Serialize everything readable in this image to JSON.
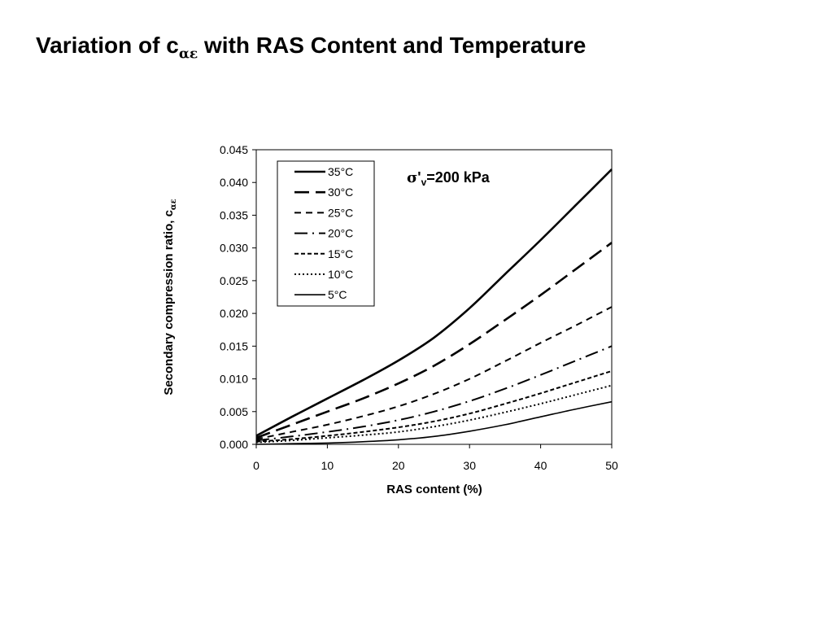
{
  "slide": {
    "title_main": "Variation of c",
    "title_sub": "αε",
    "title_rest": " with RAS Content and Temperature"
  },
  "chart_data": {
    "type": "line",
    "title": "",
    "xlabel": "RAS content (%)",
    "ylabel": "Secondary compression ratio, c",
    "ylabel_sub": "αε",
    "xlim": [
      0,
      50
    ],
    "ylim": [
      0,
      0.045
    ],
    "x_ticks": [
      "0",
      "10",
      "20",
      "30",
      "40",
      "50"
    ],
    "y_ticks": [
      "0.000",
      "0.005",
      "0.010",
      "0.015",
      "0.020",
      "0.025",
      "0.030",
      "0.035",
      "0.040",
      "0.045"
    ],
    "grid": false,
    "legend_position": "top-left",
    "annotation": {
      "sigma": "σ",
      "prime": "'",
      "sub": "v",
      "text": "=200 kPa"
    },
    "x": [
      0,
      5,
      10,
      15,
      20,
      25,
      30,
      35,
      40,
      45,
      50
    ],
    "series": [
      {
        "name": "35°C",
        "dash": "solid-thick",
        "values": [
          0.0013,
          0.0042,
          0.007,
          0.0098,
          0.0128,
          0.0163,
          0.0208,
          0.026,
          0.0312,
          0.0366,
          0.042
        ]
      },
      {
        "name": "30°C",
        "dash": "long-dash",
        "values": [
          0.001,
          0.003,
          0.005,
          0.007,
          0.0093,
          0.012,
          0.0153,
          0.019,
          0.0228,
          0.0268,
          0.0308
        ]
      },
      {
        "name": "25°C",
        "dash": "dash",
        "values": [
          0.0008,
          0.0019,
          0.003,
          0.0043,
          0.0058,
          0.0077,
          0.01,
          0.0127,
          0.0155,
          0.0182,
          0.021
        ]
      },
      {
        "name": "20°C",
        "dash": "dash-dot",
        "values": [
          0.0006,
          0.0012,
          0.0019,
          0.0027,
          0.0037,
          0.005,
          0.0066,
          0.0085,
          0.0106,
          0.0128,
          0.015
        ]
      },
      {
        "name": "15°C",
        "dash": "short-dash",
        "values": [
          0.0004,
          0.0008,
          0.0013,
          0.0019,
          0.0026,
          0.0035,
          0.0047,
          0.0062,
          0.0078,
          0.0095,
          0.0112
        ]
      },
      {
        "name": "10°C",
        "dash": "dot",
        "values": [
          0.0003,
          0.0006,
          0.001,
          0.0014,
          0.0019,
          0.0027,
          0.0037,
          0.0049,
          0.0062,
          0.0076,
          0.009
        ]
      },
      {
        "name": "5°C",
        "dash": "solid-thin",
        "values": [
          0.0,
          0.0001,
          0.0002,
          0.0004,
          0.0007,
          0.0012,
          0.002,
          0.003,
          0.0042,
          0.0054,
          0.0065
        ]
      }
    ]
  }
}
